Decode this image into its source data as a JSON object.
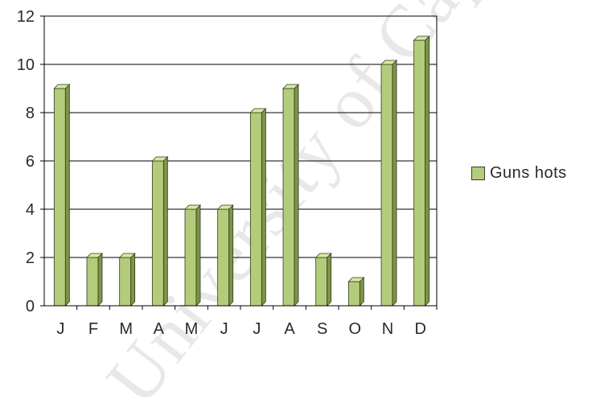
{
  "chart_data": {
    "type": "bar",
    "categories": [
      "J",
      "F",
      "M",
      "A",
      "M",
      "J",
      "J",
      "A",
      "S",
      "O",
      "N",
      "D"
    ],
    "series": [
      {
        "name": "Gunshots",
        "values": [
          9,
          2,
          2,
          6,
          4,
          4,
          8,
          9,
          2,
          1,
          10,
          11
        ]
      }
    ],
    "legend_label": "Guns hots",
    "ylim": [
      0,
      12
    ],
    "yticks": [
      0,
      2,
      4,
      6,
      8,
      10,
      12
    ],
    "grid": true,
    "legend_position": "right",
    "colors": {
      "bar_front": "#b3cc7a",
      "bar_side": "#7d9448",
      "bar_top": "#d8e8a8",
      "grid": "#000000"
    },
    "watermark": "University of Cape Town"
  }
}
